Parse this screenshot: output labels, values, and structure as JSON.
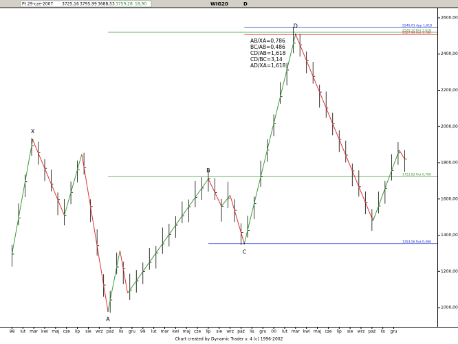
{
  "header": {
    "date": "Pt 29-cze-2007",
    "open": "3725,16",
    "high": "3795,99",
    "low": "3688,53",
    "close": "3759,28",
    "change": "18,90",
    "symbol": "WIG20",
    "period": "D"
  },
  "chart_data": {
    "type": "ohlc",
    "color": "#000000",
    "xlim": [
      -1.1,
      39
    ],
    "ylim": [
      894,
      2653
    ],
    "yticks": [
      {
        "value": 1000,
        "label": "1000,00"
      },
      {
        "value": 1200,
        "label": "1200,00"
      },
      {
        "value": 1400,
        "label": "1400,00"
      },
      {
        "value": 1600,
        "label": "1600,00"
      },
      {
        "value": 1800,
        "label": "1800,00"
      },
      {
        "value": 2000,
        "label": "2000,00"
      },
      {
        "value": 2200,
        "label": "2200,00"
      },
      {
        "value": 2400,
        "label": "2400,00"
      },
      {
        "value": 2600,
        "label": "2600,00"
      }
    ],
    "xticks": [
      {
        "value": 0,
        "label": "98"
      },
      {
        "value": 1,
        "label": "lut"
      },
      {
        "value": 2,
        "label": "mar"
      },
      {
        "value": 3,
        "label": "kwi"
      },
      {
        "value": 4,
        "label": "maj"
      },
      {
        "value": 5,
        "label": "cze"
      },
      {
        "value": 6,
        "label": "lip"
      },
      {
        "value": 7,
        "label": "sie"
      },
      {
        "value": 8,
        "label": "wrz"
      },
      {
        "value": 9,
        "label": "paź"
      },
      {
        "value": 10,
        "label": "lis"
      },
      {
        "value": 11,
        "label": "gru"
      },
      {
        "value": 12,
        "label": "99"
      },
      {
        "value": 13,
        "label": "lut"
      },
      {
        "value": 14,
        "label": "mar"
      },
      {
        "value": 15,
        "label": "kwi"
      },
      {
        "value": 16,
        "label": "maj"
      },
      {
        "value": 17,
        "label": "cze"
      },
      {
        "value": 18,
        "label": "lip"
      },
      {
        "value": 19,
        "label": "sie"
      },
      {
        "value": 20,
        "label": "wrz"
      },
      {
        "value": 21,
        "label": "paź"
      },
      {
        "value": 22,
        "label": "lis"
      },
      {
        "value": 23,
        "label": "gru"
      },
      {
        "value": 24,
        "label": "00"
      },
      {
        "value": 25,
        "label": "lut"
      },
      {
        "value": 26,
        "label": "mar"
      },
      {
        "value": 27,
        "label": "kwi"
      },
      {
        "value": 28,
        "label": "maj"
      },
      {
        "value": 29,
        "label": "cze"
      },
      {
        "value": 30,
        "label": "lip"
      },
      {
        "value": 31,
        "label": "sie"
      },
      {
        "value": 32,
        "label": "wrz"
      },
      {
        "value": 33,
        "label": "paź"
      },
      {
        "value": 34,
        "label": "lis"
      },
      {
        "value": 35,
        "label": "gru"
      }
    ],
    "x": [
      0,
      0.6,
      1.2,
      1.8,
      2.4,
      3.0,
      3.6,
      4.2,
      4.8,
      5.4,
      6.0,
      6.6,
      7.2,
      7.8,
      8.4,
      9.0,
      9.6,
      10.2,
      10.8,
      11.4,
      12.0,
      12.6,
      13.2,
      13.8,
      14.4,
      15.0,
      15.6,
      16.2,
      16.8,
      17.4,
      18.0,
      18.6,
      19.2,
      19.8,
      20.4,
      21.0,
      21.6,
      22.2,
      22.8,
      23.4,
      24.0,
      24.6,
      25.2,
      25.8,
      26.4,
      27.0,
      27.6,
      28.2,
      28.8,
      29.4,
      30.0,
      30.6,
      31.2,
      31.8,
      32.4,
      33.0,
      33.6,
      34.2,
      34.8,
      35.4,
      36.0
    ],
    "high": [
      1346,
      1575,
      1735,
      1935,
      1915,
      1819,
      1762,
      1636,
      1599,
      1696,
      1812,
      1855,
      1598,
      1432,
      1185,
      1092,
      1304,
      1254,
      1187,
      1208,
      1249,
      1330,
      1341,
      1442,
      1463,
      1505,
      1586,
      1597,
      1699,
      1720,
      1761,
      1715,
      1600,
      1695,
      1598,
      1465,
      1507,
      1614,
      1812,
      1930,
      2067,
      2245,
      2352,
      2550,
      2511,
      2414,
      2357,
      2230,
      2193,
      2076,
      1979,
      1922,
      1795,
      1758,
      1641,
      1544,
      1641,
      1699,
      1847,
      1914,
      1870
    ],
    "low": [
      1226,
      1455,
      1610,
      1839,
      1790,
      1699,
      1642,
      1511,
      1454,
      1571,
      1692,
      1735,
      1473,
      1287,
      1060,
      972,
      1184,
      1129,
      1042,
      1083,
      1129,
      1210,
      1216,
      1297,
      1338,
      1385,
      1466,
      1472,
      1554,
      1595,
      1641,
      1595,
      1475,
      1550,
      1473,
      1345,
      1387,
      1489,
      1667,
      1805,
      1947,
      2125,
      2227,
      2405,
      2386,
      2294,
      2237,
      2105,
      2048,
      1951,
      1859,
      1802,
      1670,
      1613,
      1516,
      1424,
      1521,
      1574,
      1702,
      1789,
      1750
    ],
    "close": [
      1296,
      1495,
      1695,
      1894,
      1855,
      1769,
      1682,
      1596,
      1509,
      1636,
      1762,
      1775,
      1558,
      1342,
      1125,
      1042,
      1224,
      1214,
      1097,
      1148,
      1199,
      1250,
      1301,
      1352,
      1403,
      1455,
      1506,
      1557,
      1609,
      1660,
      1711,
      1635,
      1560,
      1605,
      1538,
      1415,
      1427,
      1574,
      1722,
      1870,
      2017,
      2165,
      2312,
      2460,
      2451,
      2364,
      2277,
      2190,
      2103,
      2016,
      1929,
      1842,
      1755,
      1668,
      1581,
      1494,
      1561,
      1659,
      1757,
      1854,
      1820
    ],
    "zigzag": {
      "up_color": "#3a9a3a",
      "down_color": "#e03030",
      "x": [
        0,
        1.9,
        4.8,
        6.4,
        8.8,
        9.9,
        10.6,
        18.0,
        19.2,
        20.0,
        21.3,
        26.0,
        33.1,
        35.5,
        36.0
      ],
      "y": [
        1296,
        1927,
        1509,
        1847,
        981,
        1315,
        1080,
        1711,
        1560,
        1620,
        1353,
        2509,
        1479,
        1870,
        1820
      ]
    },
    "points": [
      {
        "label": "X",
        "x": 1.9,
        "y": 1927
      },
      {
        "label": "A",
        "x": 8.8,
        "y": 981
      },
      {
        "label": "B",
        "x": 18.0,
        "y": 1711
      },
      {
        "label": "C",
        "x": 21.3,
        "y": 1353
      },
      {
        "label": "D",
        "x": 26.0,
        "y": 2509
      }
    ],
    "levels": [
      {
        "value": 2546.01,
        "label": "2546,01 App 1,618",
        "color": "#2030d0",
        "x_from": 21.3
      },
      {
        "value": 2520.32,
        "label": "2520,32 Ret 1,618",
        "color": "#3a9a3a",
        "x_from": 8.8
      },
      {
        "value": 2507.94,
        "label": "2507,94 Ret 1,786",
        "color": "#e03030",
        "x_from": 21.3
      },
      {
        "value": 1723.82,
        "label": "1723,82 Ret 0,786",
        "color": "#3a9a3a",
        "x_from": 8.8
      },
      {
        "value": 1353.56,
        "label": "1353,56 Ret 0,486",
        "color": "#2030d0",
        "x_from": 18.0
      }
    ],
    "annotations": [
      "AB/XA=0,786",
      "BC/AB=0,486",
      "CD/AB=1,618",
      "CD/BC=3,14",
      "AD/XA=1,618"
    ],
    "footer": "Chart created by Dynamic Trader v. 4  (c) 1996-2002"
  }
}
